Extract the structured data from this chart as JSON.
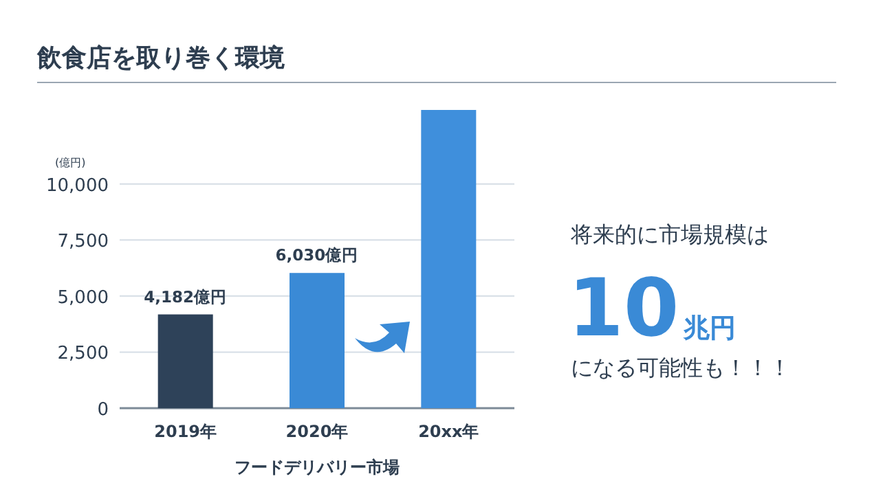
{
  "chart_data": {
    "type": "bar",
    "title": "飲食店を取り巻く環境",
    "ylabel": "(億円)",
    "xlabel": "フードデリバリー市場",
    "categories": [
      "2019年",
      "2020年",
      "20xx年"
    ],
    "values": [
      4182,
      6030,
      13300
    ],
    "colors": [
      "#2e4259",
      "#3a8ad6",
      "#3f8fdc"
    ],
    "value_labels": [
      "4,182億円",
      "6,030億円",
      null
    ],
    "ylim": [
      0,
      13300
    ],
    "yticks": [
      0,
      {
        "value": 2500,
        "label": "2,500"
      },
      {
        "value": 5000,
        "label": "5,000"
      },
      {
        "value": 7500,
        "label": "7,500"
      },
      {
        "value": 10000,
        "label": "10,000"
      }
    ],
    "grid": "y",
    "annotations": [
      "将来的に市場規模は",
      "10",
      "兆円",
      "になる可能性も！！！"
    ]
  }
}
